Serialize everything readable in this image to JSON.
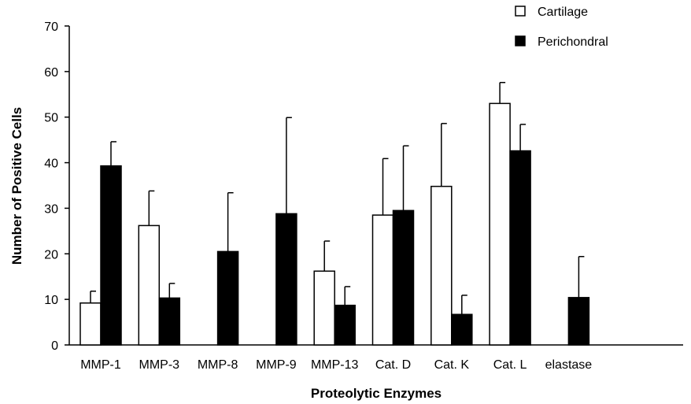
{
  "chart_data": {
    "type": "bar",
    "xlabel": "Proteolytic Enzymes",
    "ylabel": "Number of Positive Cells",
    "ylim": [
      0,
      70
    ],
    "yticks": [
      0,
      10,
      20,
      30,
      40,
      50,
      60,
      70
    ],
    "grid": false,
    "legend_position": "top-right",
    "categories": [
      "MMP-1",
      "MMP-3",
      "MMP-8",
      "MMP-9",
      "MMP-13",
      "Cat. D",
      "Cat. K",
      "Cat. L",
      "elastase"
    ],
    "series": [
      {
        "name": "Cartilage",
        "fill": "#ffffff",
        "values": [
          9.2,
          26.2,
          null,
          null,
          16.2,
          28.5,
          34.8,
          53.0,
          null
        ],
        "errors": [
          2.6,
          7.6,
          null,
          null,
          6.6,
          12.4,
          13.8,
          4.6,
          null
        ]
      },
      {
        "name": "Perichondral",
        "fill": "#000000",
        "values": [
          39.3,
          10.3,
          20.5,
          28.8,
          8.7,
          29.5,
          6.7,
          42.6,
          10.4
        ],
        "errors": [
          5.3,
          3.2,
          12.9,
          21.1,
          4.1,
          14.2,
          4.2,
          5.8,
          9.0
        ]
      }
    ]
  }
}
